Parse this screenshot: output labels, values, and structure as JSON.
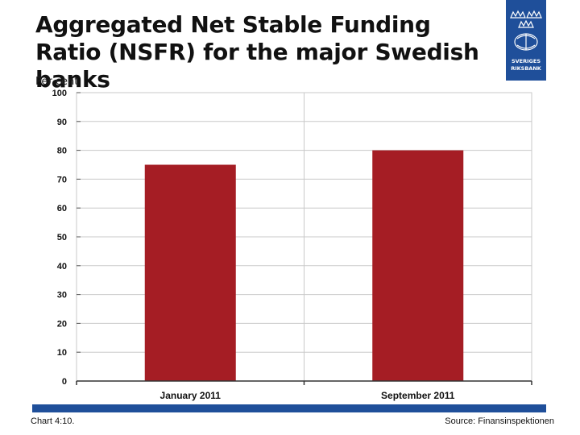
{
  "header": {
    "title": "Aggregated Net Stable Funding Ratio (NSFR) for the major Swedish banks",
    "unit": "Per cent"
  },
  "logo": {
    "name": "sveriges-riksbank-logo",
    "text_line1": "SVERIGES",
    "text_line2": "RIKSBANK"
  },
  "footer": {
    "note": "Chart 4:10.",
    "source": "Source: Finansinspektionen"
  },
  "colors": {
    "bar": "#a51d24",
    "brand_blue": "#1f4f9a",
    "grid": "#c8c8c8"
  },
  "chart_data": {
    "type": "bar",
    "categories": [
      "January 2011",
      "September 2011"
    ],
    "values": [
      75,
      80
    ],
    "title": "Aggregated Net Stable Funding Ratio (NSFR) for the major Swedish banks",
    "ylabel": "Per cent",
    "xlabel": "",
    "ylim": [
      0,
      100
    ],
    "yticks": [
      0,
      10,
      20,
      30,
      40,
      50,
      60,
      70,
      80,
      90,
      100
    ],
    "grid": true,
    "legend": "none"
  }
}
